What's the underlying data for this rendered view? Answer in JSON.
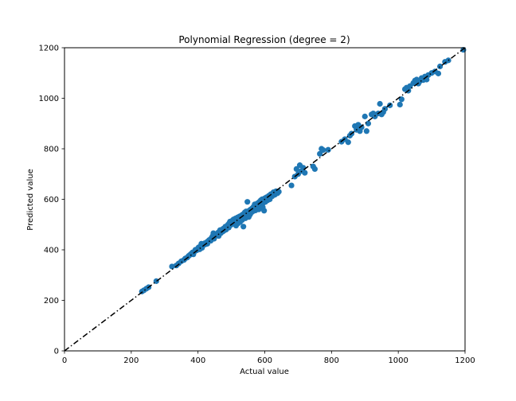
{
  "chart_data": {
    "type": "scatter",
    "title": "Polynomial Regression (degree = 2)",
    "xlabel": "Actual value",
    "ylabel": "Predicted value",
    "xlim": [
      0,
      1200
    ],
    "ylim": [
      0,
      1200
    ],
    "xticks": [
      0,
      200,
      400,
      600,
      800,
      1000,
      1200
    ],
    "yticks": [
      0,
      200,
      400,
      600,
      800,
      1000,
      1200
    ],
    "grid": false,
    "marker_color": "#1f77b4",
    "reference_line": {
      "style": "dash-dot",
      "color": "#000000",
      "from": [
        0,
        0
      ],
      "to": [
        1200,
        1200
      ]
    },
    "points": [
      [
        232,
        235
      ],
      [
        238,
        240
      ],
      [
        245,
        246
      ],
      [
        252,
        252
      ],
      [
        275,
        276
      ],
      [
        322,
        334
      ],
      [
        335,
        338
      ],
      [
        342,
        346
      ],
      [
        350,
        355
      ],
      [
        358,
        360
      ],
      [
        362,
        366
      ],
      [
        368,
        370
      ],
      [
        372,
        376
      ],
      [
        376,
        380
      ],
      [
        380,
        385
      ],
      [
        384,
        390
      ],
      [
        386,
        382
      ],
      [
        390,
        394
      ],
      [
        392,
        400
      ],
      [
        396,
        398
      ],
      [
        400,
        406
      ],
      [
        402,
        410
      ],
      [
        405,
        402
      ],
      [
        408,
        415
      ],
      [
        410,
        424
      ],
      [
        412,
        408
      ],
      [
        415,
        418
      ],
      [
        418,
        420
      ],
      [
        420,
        426
      ],
      [
        423,
        422
      ],
      [
        426,
        430
      ],
      [
        428,
        424
      ],
      [
        430,
        434
      ],
      [
        433,
        438
      ],
      [
        435,
        440
      ],
      [
        438,
        436
      ],
      [
        440,
        446
      ],
      [
        442,
        450
      ],
      [
        444,
        455
      ],
      [
        446,
        466
      ],
      [
        448,
        444
      ],
      [
        450,
        452
      ],
      [
        452,
        458
      ],
      [
        455,
        460
      ],
      [
        457,
        462
      ],
      [
        460,
        468
      ],
      [
        462,
        455
      ],
      [
        464,
        470
      ],
      [
        466,
        478
      ],
      [
        468,
        466
      ],
      [
        470,
        474
      ],
      [
        472,
        480
      ],
      [
        474,
        472
      ],
      [
        476,
        484
      ],
      [
        478,
        476
      ],
      [
        480,
        486
      ],
      [
        482,
        492
      ],
      [
        484,
        480
      ],
      [
        486,
        490
      ],
      [
        488,
        496
      ],
      [
        490,
        500
      ],
      [
        492,
        488
      ],
      [
        494,
        506
      ],
      [
        496,
        512
      ],
      [
        498,
        498
      ],
      [
        500,
        504
      ],
      [
        502,
        515
      ],
      [
        504,
        508
      ],
      [
        506,
        520
      ],
      [
        508,
        506
      ],
      [
        510,
        512
      ],
      [
        512,
        524
      ],
      [
        514,
        496
      ],
      [
        516,
        518
      ],
      [
        518,
        528
      ],
      [
        520,
        505
      ],
      [
        522,
        516
      ],
      [
        524,
        532
      ],
      [
        526,
        510
      ],
      [
        528,
        522
      ],
      [
        530,
        536
      ],
      [
        532,
        518
      ],
      [
        534,
        540
      ],
      [
        536,
        492
      ],
      [
        538,
        530
      ],
      [
        540,
        548
      ],
      [
        542,
        525
      ],
      [
        544,
        552
      ],
      [
        546,
        538
      ],
      [
        548,
        590
      ],
      [
        550,
        544
      ],
      [
        552,
        530
      ],
      [
        554,
        556
      ],
      [
        556,
        540
      ],
      [
        558,
        560
      ],
      [
        560,
        548
      ],
      [
        562,
        564
      ],
      [
        564,
        552
      ],
      [
        566,
        570
      ],
      [
        568,
        560
      ],
      [
        570,
        580
      ],
      [
        572,
        556
      ],
      [
        574,
        574
      ],
      [
        576,
        566
      ],
      [
        578,
        584
      ],
      [
        580,
        570
      ],
      [
        582,
        560
      ],
      [
        584,
        590
      ],
      [
        586,
        576
      ],
      [
        588,
        596
      ],
      [
        590,
        580
      ],
      [
        592,
        600
      ],
      [
        594,
        568
      ],
      [
        596,
        586
      ],
      [
        598,
        555
      ],
      [
        600,
        604
      ],
      [
        602,
        590
      ],
      [
        605,
        608
      ],
      [
        608,
        596
      ],
      [
        612,
        614
      ],
      [
        615,
        600
      ],
      [
        618,
        620
      ],
      [
        622,
        612
      ],
      [
        626,
        628
      ],
      [
        630,
        618
      ],
      [
        634,
        632
      ],
      [
        638,
        624
      ],
      [
        642,
        630
      ],
      [
        680,
        655
      ],
      [
        690,
        690
      ],
      [
        695,
        720
      ],
      [
        700,
        700
      ],
      [
        705,
        735
      ],
      [
        710,
        712
      ],
      [
        715,
        725
      ],
      [
        720,
        705
      ],
      [
        745,
        730
      ],
      [
        750,
        720
      ],
      [
        765,
        780
      ],
      [
        770,
        800
      ],
      [
        775,
        795
      ],
      [
        790,
        796
      ],
      [
        830,
        828
      ],
      [
        840,
        838
      ],
      [
        850,
        826
      ],
      [
        855,
        852
      ],
      [
        860,
        860
      ],
      [
        870,
        890
      ],
      [
        875,
        875
      ],
      [
        880,
        895
      ],
      [
        885,
        870
      ],
      [
        890,
        885
      ],
      [
        900,
        928
      ],
      [
        905,
        870
      ],
      [
        910,
        900
      ],
      [
        920,
        936
      ],
      [
        925,
        940
      ],
      [
        930,
        928
      ],
      [
        940,
        940
      ],
      [
        945,
        978
      ],
      [
        950,
        936
      ],
      [
        955,
        945
      ],
      [
        960,
        958
      ],
      [
        975,
        972
      ],
      [
        1005,
        975
      ],
      [
        1010,
        996
      ],
      [
        1020,
        1036
      ],
      [
        1025,
        1042
      ],
      [
        1030,
        1030
      ],
      [
        1035,
        1048
      ],
      [
        1045,
        1060
      ],
      [
        1050,
        1070
      ],
      [
        1055,
        1074
      ],
      [
        1060,
        1058
      ],
      [
        1065,
        1068
      ],
      [
        1070,
        1080
      ],
      [
        1075,
        1072
      ],
      [
        1080,
        1086
      ],
      [
        1085,
        1074
      ],
      [
        1090,
        1092
      ],
      [
        1100,
        1100
      ],
      [
        1110,
        1106
      ],
      [
        1120,
        1098
      ],
      [
        1125,
        1126
      ],
      [
        1140,
        1144
      ],
      [
        1150,
        1150
      ],
      [
        1195,
        1192
      ]
    ]
  }
}
